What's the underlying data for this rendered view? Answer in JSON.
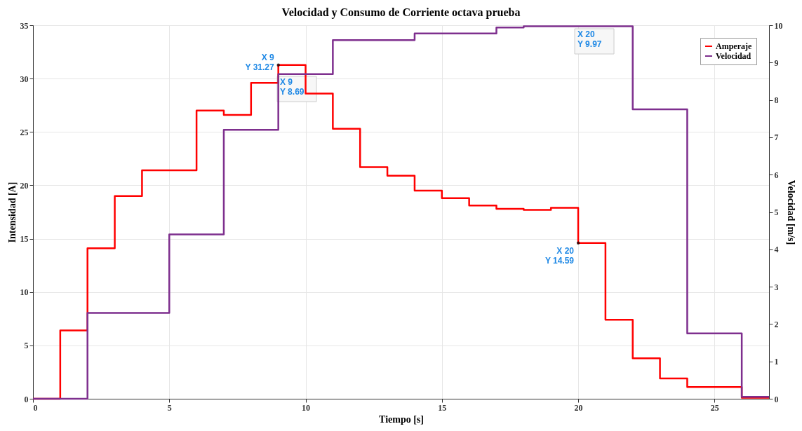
{
  "chart_data": {
    "type": "step",
    "title": "Velocidad y Consumo de Corriente octava prueba",
    "xlabel": "Tiempo [s]",
    "ylabel": "Intensidad [A]",
    "y2label": "Velocidad [m/s]",
    "x": [
      0,
      1,
      2,
      3,
      4,
      5,
      6,
      7,
      8,
      9,
      10,
      11,
      12,
      13,
      14,
      15,
      16,
      17,
      18,
      19,
      20,
      21,
      22,
      23,
      24,
      25,
      26,
      27
    ],
    "series": [
      {
        "name": "Amperaje",
        "color": "#ff0000",
        "values": [
          0,
          6.4,
          14.1,
          19.0,
          21.4,
          21.4,
          27.0,
          26.6,
          29.6,
          31.27,
          28.6,
          25.3,
          21.7,
          20.9,
          19.5,
          18.8,
          18.1,
          17.8,
          17.7,
          17.9,
          14.59,
          7.4,
          3.8,
          1.9,
          1.1,
          1.1,
          0.1,
          0.1
        ]
      },
      {
        "name": "Velocidad",
        "color": "#7e2f8e",
        "axis": "y2",
        "values": [
          0,
          0,
          2.3,
          2.3,
          2.3,
          4.4,
          4.4,
          7.2,
          7.2,
          8.69,
          8.69,
          9.6,
          9.6,
          9.6,
          9.78,
          9.78,
          9.78,
          9.94,
          9.97,
          9.97,
          9.97,
          9.97,
          7.75,
          7.75,
          1.75,
          1.75,
          0.05,
          0.05
        ]
      }
    ],
    "xlim": [
      0,
      27
    ],
    "xticks": [
      0,
      5,
      10,
      15,
      20,
      25
    ],
    "ylim": [
      0,
      35
    ],
    "yticks": [
      0,
      5,
      10,
      15,
      20,
      25,
      30,
      35
    ],
    "y2lim": [
      0,
      10
    ],
    "y2ticks": [
      0,
      1,
      2,
      3,
      4,
      5,
      6,
      7,
      8,
      9,
      10
    ],
    "annotations": [
      {
        "text": "X 9\nY 31.27",
        "x": 9,
        "y": 31.27
      },
      "X 9\nY 8.69",
      "X 20\nY 9.97",
      {
        "text": "X 20\nY 14.59",
        "x": 20,
        "y": 14.59
      }
    ],
    "grid": true,
    "legend": "top right",
    "marker": "none",
    "line_style": "solid"
  }
}
